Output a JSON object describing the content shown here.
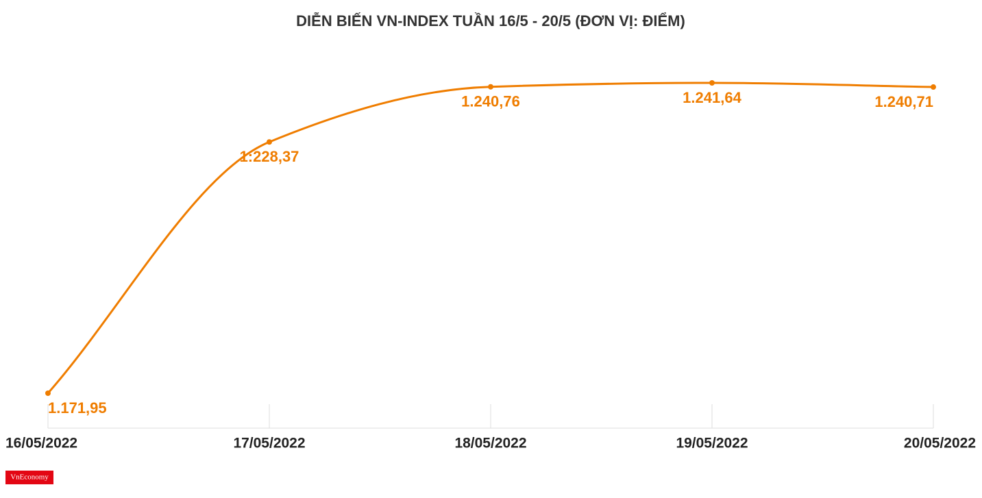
{
  "chart_data": {
    "type": "line",
    "title": "DIỄN BIẾN VN-INDEX TUẦN 16/5 - 20/5 (ĐƠN VỊ: ĐIỂM)",
    "categories": [
      "16/05/2022",
      "17/05/2022",
      "18/05/2022",
      "19/05/2022",
      "20/05/2022"
    ],
    "series": [
      {
        "color": "#ef7d00",
        "values": [
          1171.95,
          1228.37,
          1240.76,
          1241.64,
          1240.71
        ],
        "value_labels": [
          "1.171,95",
          "1:228,37",
          "1.240,76",
          "1.241,64",
          "1.240,71"
        ]
      }
    ]
  },
  "logo": "VnEconomy"
}
